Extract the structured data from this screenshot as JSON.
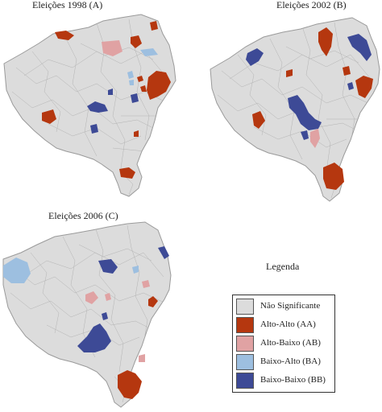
{
  "colors": {
    "ns": "#dcdcdc",
    "aa": "#b5370f",
    "ab": "#e0a2a3",
    "ba": "#9dbfe0",
    "bb": "#3d4a96",
    "border": "#9a9a9a"
  },
  "panels": [
    {
      "title": "Eleições 1998 (A)"
    },
    {
      "title": "Eleições 2002 (B)"
    },
    {
      "title": "Eleições 2006 (C)"
    }
  ],
  "legend": {
    "title": "Legenda",
    "items": [
      {
        "label": "Não Significante",
        "color": "#dcdcdc"
      },
      {
        "label": "Alto-Alto (AA)",
        "color": "#b5370f"
      },
      {
        "label": "Alto-Baixo (AB)",
        "color": "#e0a2a3"
      },
      {
        "label": "Baixo-Alto (BA)",
        "color": "#9dbfe0"
      },
      {
        "label": "Baixo-Baixo (BB)",
        "color": "#3d4a96"
      }
    ]
  }
}
